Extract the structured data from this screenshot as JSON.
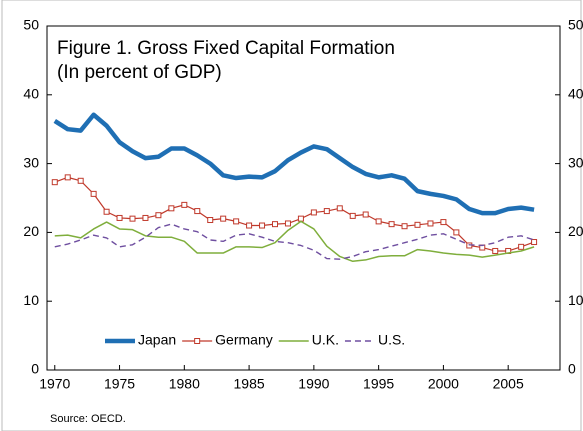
{
  "chart_data": {
    "type": "line",
    "title": "Figure 1. Gross Fixed Capital Formation",
    "subtitle": "(In percent of GDP)",
    "source": "Source: OECD.",
    "x": [
      1970,
      1971,
      1972,
      1973,
      1974,
      1975,
      1976,
      1977,
      1978,
      1979,
      1980,
      1981,
      1982,
      1983,
      1984,
      1985,
      1986,
      1987,
      1988,
      1989,
      1990,
      1991,
      1992,
      1993,
      1994,
      1995,
      1996,
      1997,
      1998,
      1999,
      2000,
      2001,
      2002,
      2003,
      2004,
      2005,
      2006,
      2007
    ],
    "series": [
      {
        "name": "Japan",
        "color": "#1f6fb4",
        "values": [
          36.2,
          35,
          34.8,
          37.1,
          35.5,
          33.1,
          31.8,
          30.8,
          31,
          32.2,
          32.2,
          31.2,
          30,
          28.3,
          27.9,
          28.1,
          28,
          28.9,
          30.5,
          31.6,
          32.5,
          32.1,
          30.8,
          29.5,
          28.5,
          28,
          28.3,
          27.8,
          26,
          25.6,
          25.3,
          24.8,
          23.4,
          22.8,
          22.8,
          23.4,
          23.6,
          23.3
        ]
      },
      {
        "name": "Germany",
        "color": "#c0392b",
        "values": [
          27.3,
          28,
          27.5,
          25.6,
          23,
          22.1,
          22,
          22.1,
          22.5,
          23.5,
          24,
          23.1,
          21.8,
          22,
          21.6,
          21,
          21,
          21.2,
          21.3,
          22,
          22.9,
          23.1,
          23.5,
          22.4,
          22.6,
          21.6,
          21.2,
          20.9,
          21.1,
          21.3,
          21.5,
          20,
          18.1,
          17.8,
          17.3,
          17.3,
          17.9,
          18.6
        ]
      },
      {
        "name": "U.K.",
        "color": "#7fae3c",
        "values": [
          19.5,
          19.6,
          19.2,
          20.5,
          21.5,
          20.5,
          20.4,
          19.5,
          19.3,
          19.3,
          18.7,
          17,
          17,
          17,
          17.9,
          17.9,
          17.8,
          18.5,
          20.3,
          21.6,
          20.5,
          18,
          16.5,
          15.8,
          16,
          16.5,
          16.6,
          16.6,
          17.5,
          17.3,
          17,
          16.8,
          16.7,
          16.4,
          16.7,
          17,
          17.3,
          17.9
        ]
      },
      {
        "name": "U.S.",
        "color": "#6f4fa0",
        "values": [
          17.9,
          18.3,
          18.9,
          19.6,
          19.2,
          17.9,
          18.2,
          19.3,
          20.7,
          21.2,
          20.5,
          20.1,
          18.9,
          18.7,
          19.6,
          19.8,
          19.3,
          18.7,
          18.5,
          18.1,
          17.4,
          16.2,
          16.1,
          16.5,
          17.2,
          17.5,
          18,
          18.5,
          19,
          19.6,
          19.8,
          19,
          18.2,
          18.1,
          18.5,
          19.3,
          19.5,
          18.9
        ]
      }
    ],
    "xlim": [
      1969.4,
      2009
    ],
    "xticks": [
      1970,
      1975,
      1980,
      1985,
      1990,
      1995,
      2000,
      2005
    ],
    "ylim": [
      0,
      50
    ],
    "yticks": [
      0,
      10,
      20,
      30,
      40,
      50
    ],
    "y2lim": [
      0,
      50
    ],
    "y2ticks": [
      0,
      10,
      20,
      30,
      40,
      50
    ],
    "grid": false
  }
}
